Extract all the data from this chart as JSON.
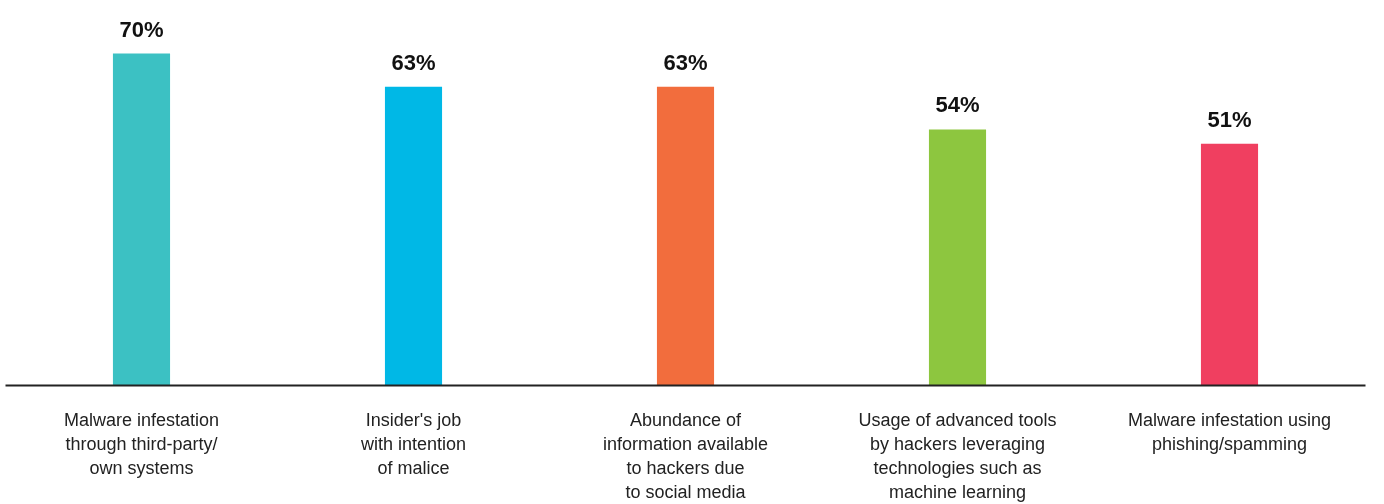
{
  "chart_data": {
    "type": "bar",
    "categories": [
      "Malware infestation\nthrough third-party/\nown systems",
      "Insider's job\nwith intention\nof malice",
      "Abundance of\ninformation available\nto hackers due\nto social media",
      "Usage of advanced tools\nby hackers leveraging\ntechnologies such as\nmachine learning",
      "Malware infestation using\nphishing/spamming"
    ],
    "values": [
      70,
      63,
      63,
      54,
      51
    ],
    "colors": [
      "#3cc1c3",
      "#00b8e6",
      "#f26d3d",
      "#8dc63f",
      "#f03f60"
    ],
    "value_labels": [
      "70%",
      "63%",
      "63%",
      "54%",
      "51%"
    ],
    "grid": false
  }
}
